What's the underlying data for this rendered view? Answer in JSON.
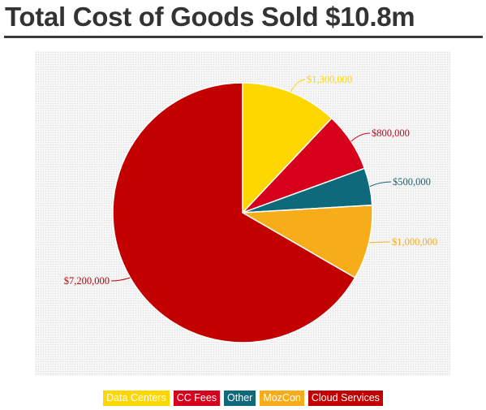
{
  "title": "Total Cost of Goods Sold $10.8m",
  "chart_data": {
    "type": "pie",
    "title": "Total Cost of Goods Sold $10.8m",
    "slices": [
      {
        "name": "Data Centers",
        "value": 1300000,
        "label": "$1,300,000",
        "color": "#ffd700"
      },
      {
        "name": "CC Fees",
        "value": 800000,
        "label": "$800,000",
        "color": "#d6001c"
      },
      {
        "name": "Other",
        "value": 500000,
        "label": "$500,000",
        "color": "#0e6a7a"
      },
      {
        "name": "MozCon",
        "value": 1000000,
        "label": "$1,000,000",
        "color": "#f7ad19"
      },
      {
        "name": "Cloud Services",
        "value": 7200000,
        "label": "$7,200,000",
        "color": "#c20000"
      }
    ],
    "legend": [
      "Data Centers",
      "CC Fees",
      "Other",
      "MozCon",
      "Cloud Services"
    ],
    "legend_position": "bottom",
    "start_angle": "12 o'clock, clockwise"
  }
}
